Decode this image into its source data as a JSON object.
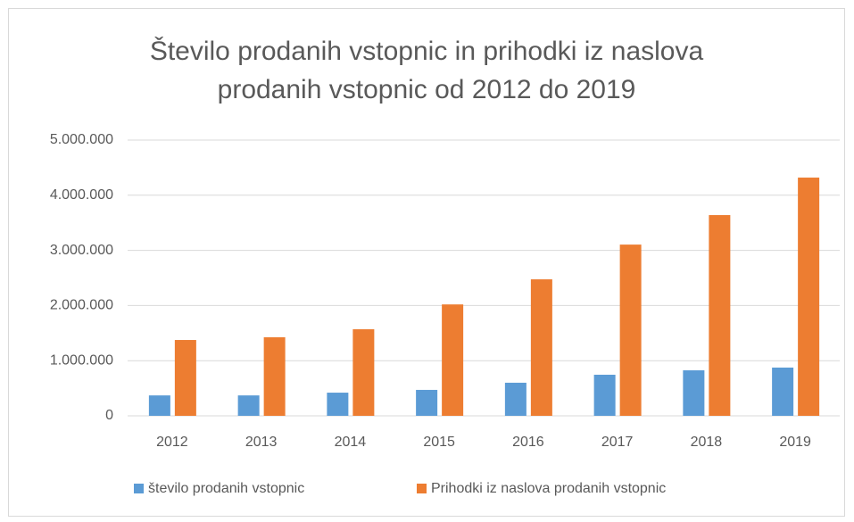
{
  "chart_data": {
    "type": "bar",
    "title": "Število prodanih vstopnic in prihodki iz naslova prodanih vstopnic od 2012 do 2019",
    "categories": [
      "2012",
      "2013",
      "2014",
      "2015",
      "2016",
      "2017",
      "2018",
      "2019"
    ],
    "series": [
      {
        "name": "število prodanih vstopnic",
        "color": "#5b9bd5",
        "values": [
          370000,
          370000,
          420000,
          470000,
          600000,
          745000,
          825000,
          875000
        ]
      },
      {
        "name": "Prihodki iz naslova prodanih vstopnic",
        "color": "#ed7d31",
        "values": [
          1375000,
          1425000,
          1570000,
          2020000,
          2475000,
          3105000,
          3640000,
          4320000
        ]
      }
    ],
    "ylim": [
      0,
      5000000
    ],
    "yticks": [
      0,
      {
        "value": 1000000,
        "label": "1.000.000"
      },
      {
        "value": 2000000,
        "label": "2.000.000"
      },
      {
        "value": 3000000,
        "label": "3.000.000"
      },
      {
        "value": 4000000,
        "label": "4.000.000"
      },
      {
        "value": 5000000,
        "label": "5.000.000"
      }
    ],
    "grid": true,
    "legend": "bottom"
  }
}
